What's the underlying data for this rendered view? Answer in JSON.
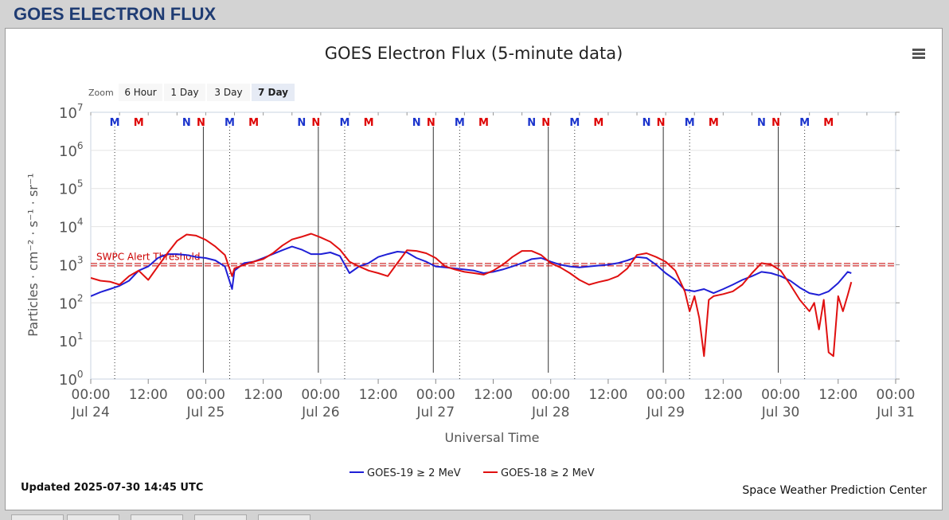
{
  "page": {
    "heading": "GOES ELECTRON FLUX"
  },
  "chart_data": {
    "type": "line",
    "title": "GOES Electron Flux (5-minute data)",
    "xlabel": "Universal Time",
    "ylabel": "Particles · cm⁻² · s⁻¹ · sr⁻¹",
    "y_scale": "log",
    "ylim": [
      1,
      10000000
    ],
    "xlim": [
      "2025-07-24 00:00",
      "2025-07-31 00:00"
    ],
    "y_ticks": [
      {
        "base": "10",
        "exp": "0"
      },
      {
        "base": "10",
        "exp": "1"
      },
      {
        "base": "10",
        "exp": "2"
      },
      {
        "base": "10",
        "exp": "3"
      },
      {
        "base": "10",
        "exp": "4"
      },
      {
        "base": "10",
        "exp": "5"
      },
      {
        "base": "10",
        "exp": "6"
      },
      {
        "base": "10",
        "exp": "7"
      }
    ],
    "x_ticks": [
      {
        "x": "2025-07-24 00:00",
        "time": "00:00",
        "date": "Jul 24"
      },
      {
        "x": "2025-07-24 12:00",
        "time": "12:00",
        "date": ""
      },
      {
        "x": "2025-07-25 00:00",
        "time": "00:00",
        "date": "Jul 25"
      },
      {
        "x": "2025-07-25 12:00",
        "time": "12:00",
        "date": ""
      },
      {
        "x": "2025-07-26 00:00",
        "time": "00:00",
        "date": "Jul 26"
      },
      {
        "x": "2025-07-26 12:00",
        "time": "12:00",
        "date": ""
      },
      {
        "x": "2025-07-27 00:00",
        "time": "00:00",
        "date": "Jul 27"
      },
      {
        "x": "2025-07-27 12:00",
        "time": "12:00",
        "date": ""
      },
      {
        "x": "2025-07-28 00:00",
        "time": "00:00",
        "date": "Jul 28"
      },
      {
        "x": "2025-07-28 12:00",
        "time": "12:00",
        "date": ""
      },
      {
        "x": "2025-07-29 00:00",
        "time": "00:00",
        "date": "Jul 29"
      },
      {
        "x": "2025-07-29 12:00",
        "time": "12:00",
        "date": ""
      },
      {
        "x": "2025-07-30 00:00",
        "time": "00:00",
        "date": "Jul 30"
      },
      {
        "x": "2025-07-30 12:00",
        "time": "12:00",
        "date": ""
      },
      {
        "x": "2025-07-31 00:00",
        "time": "00:00",
        "date": "Jul 31"
      }
    ],
    "threshold": {
      "label": "SWPC Alert Threshold",
      "value": 1000,
      "color": "#cc0000"
    },
    "markers": [
      {
        "x": "2025-07-24 05:00",
        "label": "M",
        "color": "#1a33cc",
        "line": "dotted"
      },
      {
        "x": "2025-07-24 10:00",
        "label": "M",
        "color": "#dd0000"
      },
      {
        "x": "2025-07-24 20:00",
        "label": "N",
        "color": "#1a33cc"
      },
      {
        "x": "2025-07-24 23:00",
        "label": "N",
        "color": "#dd0000",
        "line": "solid"
      },
      {
        "x": "2025-07-25 05:00",
        "label": "M",
        "color": "#1a33cc",
        "line": "dotted"
      },
      {
        "x": "2025-07-25 10:00",
        "label": "M",
        "color": "#dd0000"
      },
      {
        "x": "2025-07-25 20:00",
        "label": "N",
        "color": "#1a33cc"
      },
      {
        "x": "2025-07-25 23:00",
        "label": "N",
        "color": "#dd0000",
        "line": "solid"
      },
      {
        "x": "2025-07-26 05:00",
        "label": "M",
        "color": "#1a33cc",
        "line": "dotted"
      },
      {
        "x": "2025-07-26 10:00",
        "label": "M",
        "color": "#dd0000"
      },
      {
        "x": "2025-07-26 20:00",
        "label": "N",
        "color": "#1a33cc"
      },
      {
        "x": "2025-07-26 23:00",
        "label": "N",
        "color": "#dd0000",
        "line": "solid"
      },
      {
        "x": "2025-07-27 05:00",
        "label": "M",
        "color": "#1a33cc",
        "line": "dotted"
      },
      {
        "x": "2025-07-27 10:00",
        "label": "M",
        "color": "#dd0000"
      },
      {
        "x": "2025-07-27 20:00",
        "label": "N",
        "color": "#1a33cc"
      },
      {
        "x": "2025-07-27 23:00",
        "label": "N",
        "color": "#dd0000",
        "line": "solid"
      },
      {
        "x": "2025-07-28 05:00",
        "label": "M",
        "color": "#1a33cc",
        "line": "dotted"
      },
      {
        "x": "2025-07-28 10:00",
        "label": "M",
        "color": "#dd0000"
      },
      {
        "x": "2025-07-28 20:00",
        "label": "N",
        "color": "#1a33cc"
      },
      {
        "x": "2025-07-28 23:00",
        "label": "N",
        "color": "#dd0000",
        "line": "solid"
      },
      {
        "x": "2025-07-29 05:00",
        "label": "M",
        "color": "#1a33cc",
        "line": "dotted"
      },
      {
        "x": "2025-07-29 10:00",
        "label": "M",
        "color": "#dd0000"
      },
      {
        "x": "2025-07-29 20:00",
        "label": "N",
        "color": "#1a33cc"
      },
      {
        "x": "2025-07-29 23:00",
        "label": "N",
        "color": "#dd0000",
        "line": "solid"
      },
      {
        "x": "2025-07-30 05:00",
        "label": "M",
        "color": "#1a33cc",
        "line": "dotted"
      },
      {
        "x": "2025-07-30 10:00",
        "label": "M",
        "color": "#dd0000"
      }
    ],
    "series": [
      {
        "name": "GOES-19 ≥ 2 MeV",
        "color": "#1f1fd6",
        "points": [
          [
            "2025-07-24 00:00",
            150
          ],
          [
            "2025-07-24 02:00",
            190
          ],
          [
            "2025-07-24 04:00",
            230
          ],
          [
            "2025-07-24 06:00",
            280
          ],
          [
            "2025-07-24 08:00",
            380
          ],
          [
            "2025-07-24 10:00",
            700
          ],
          [
            "2025-07-24 12:00",
            900
          ],
          [
            "2025-07-24 14:00",
            1500
          ],
          [
            "2025-07-24 16:00",
            1900
          ],
          [
            "2025-07-24 18:00",
            1900
          ],
          [
            "2025-07-24 20:00",
            1800
          ],
          [
            "2025-07-24 22:00",
            1600
          ],
          [
            "2025-07-25 00:00",
            1500
          ],
          [
            "2025-07-25 02:00",
            1300
          ],
          [
            "2025-07-25 04:00",
            900
          ],
          [
            "2025-07-25 05:30",
            230
          ],
          [
            "2025-07-25 06:00",
            700
          ],
          [
            "2025-07-25 08:00",
            1100
          ],
          [
            "2025-07-25 10:00",
            1200
          ],
          [
            "2025-07-25 12:00",
            1500
          ],
          [
            "2025-07-25 14:00",
            1900
          ],
          [
            "2025-07-25 16:00",
            2400
          ],
          [
            "2025-07-25 18:00",
            3000
          ],
          [
            "2025-07-25 20:00",
            2500
          ],
          [
            "2025-07-25 22:00",
            1900
          ],
          [
            "2025-07-26 00:00",
            1900
          ],
          [
            "2025-07-26 02:00",
            2100
          ],
          [
            "2025-07-26 04:00",
            1700
          ],
          [
            "2025-07-26 06:00",
            600
          ],
          [
            "2025-07-26 08:00",
            900
          ],
          [
            "2025-07-26 10:00",
            1100
          ],
          [
            "2025-07-26 12:00",
            1600
          ],
          [
            "2025-07-26 14:00",
            1900
          ],
          [
            "2025-07-26 16:00",
            2200
          ],
          [
            "2025-07-26 18:00",
            2100
          ],
          [
            "2025-07-26 20:00",
            1500
          ],
          [
            "2025-07-26 22:00",
            1200
          ],
          [
            "2025-07-27 00:00",
            900
          ],
          [
            "2025-07-27 02:00",
            850
          ],
          [
            "2025-07-27 04:00",
            800
          ],
          [
            "2025-07-27 06:00",
            750
          ],
          [
            "2025-07-27 08:00",
            700
          ],
          [
            "2025-07-27 10:00",
            600
          ],
          [
            "2025-07-27 12:00",
            650
          ],
          [
            "2025-07-27 14:00",
            750
          ],
          [
            "2025-07-27 16:00",
            900
          ],
          [
            "2025-07-27 18:00",
            1100
          ],
          [
            "2025-07-27 20:00",
            1400
          ],
          [
            "2025-07-27 22:00",
            1500
          ],
          [
            "2025-07-28 00:00",
            1200
          ],
          [
            "2025-07-28 02:00",
            1000
          ],
          [
            "2025-07-28 04:00",
            900
          ],
          [
            "2025-07-28 06:00",
            850
          ],
          [
            "2025-07-28 08:00",
            900
          ],
          [
            "2025-07-28 10:00",
            950
          ],
          [
            "2025-07-28 12:00",
            1000
          ],
          [
            "2025-07-28 14:00",
            1100
          ],
          [
            "2025-07-28 16:00",
            1300
          ],
          [
            "2025-07-28 18:00",
            1600
          ],
          [
            "2025-07-28 20:00",
            1500
          ],
          [
            "2025-07-28 22:00",
            1000
          ],
          [
            "2025-07-29 00:00",
            600
          ],
          [
            "2025-07-29 02:00",
            400
          ],
          [
            "2025-07-29 04:00",
            220
          ],
          [
            "2025-07-29 06:00",
            200
          ],
          [
            "2025-07-29 08:00",
            230
          ],
          [
            "2025-07-29 10:00",
            180
          ],
          [
            "2025-07-29 12:00",
            230
          ],
          [
            "2025-07-29 14:00",
            300
          ],
          [
            "2025-07-29 16:00",
            400
          ],
          [
            "2025-07-29 18:00",
            500
          ],
          [
            "2025-07-29 20:00",
            650
          ],
          [
            "2025-07-29 22:00",
            600
          ],
          [
            "2025-07-30 00:00",
            500
          ],
          [
            "2025-07-30 02:00",
            380
          ],
          [
            "2025-07-30 04:00",
            250
          ],
          [
            "2025-07-30 06:00",
            180
          ],
          [
            "2025-07-30 08:00",
            160
          ],
          [
            "2025-07-30 10:00",
            200
          ],
          [
            "2025-07-30 12:00",
            330
          ],
          [
            "2025-07-30 14:00",
            650
          ],
          [
            "2025-07-30 14:45",
            600
          ]
        ]
      },
      {
        "name": "GOES-18 ≥ 2 MeV",
        "color": "#e01010",
        "points": [
          [
            "2025-07-24 00:00",
            450
          ],
          [
            "2025-07-24 02:00",
            380
          ],
          [
            "2025-07-24 04:00",
            360
          ],
          [
            "2025-07-24 06:00",
            300
          ],
          [
            "2025-07-24 08:00",
            500
          ],
          [
            "2025-07-24 10:00",
            700
          ],
          [
            "2025-07-24 12:00",
            400
          ],
          [
            "2025-07-24 14:00",
            900
          ],
          [
            "2025-07-24 16:00",
            2000
          ],
          [
            "2025-07-24 18:00",
            4200
          ],
          [
            "2025-07-24 20:00",
            6200
          ],
          [
            "2025-07-24 22:00",
            5800
          ],
          [
            "2025-07-25 00:00",
            4500
          ],
          [
            "2025-07-25 02:00",
            3000
          ],
          [
            "2025-07-25 04:00",
            1800
          ],
          [
            "2025-07-25 05:30",
            500
          ],
          [
            "2025-07-25 06:00",
            800
          ],
          [
            "2025-07-25 08:00",
            1000
          ],
          [
            "2025-07-25 10:00",
            1200
          ],
          [
            "2025-07-25 12:00",
            1400
          ],
          [
            "2025-07-25 14:00",
            2000
          ],
          [
            "2025-07-25 16:00",
            3200
          ],
          [
            "2025-07-25 18:00",
            4600
          ],
          [
            "2025-07-25 20:00",
            5400
          ],
          [
            "2025-07-25 22:00",
            6500
          ],
          [
            "2025-07-26 00:00",
            5200
          ],
          [
            "2025-07-26 02:00",
            4000
          ],
          [
            "2025-07-26 04:00",
            2500
          ],
          [
            "2025-07-26 06:00",
            1200
          ],
          [
            "2025-07-26 08:00",
            900
          ],
          [
            "2025-07-26 10:00",
            700
          ],
          [
            "2025-07-26 12:00",
            600
          ],
          [
            "2025-07-26 14:00",
            500
          ],
          [
            "2025-07-26 16:00",
            1100
          ],
          [
            "2025-07-26 18:00",
            2400
          ],
          [
            "2025-07-26 20:00",
            2300
          ],
          [
            "2025-07-26 22:00",
            2000
          ],
          [
            "2025-07-27 00:00",
            1500
          ],
          [
            "2025-07-27 02:00",
            900
          ],
          [
            "2025-07-27 04:00",
            750
          ],
          [
            "2025-07-27 06:00",
            650
          ],
          [
            "2025-07-27 08:00",
            600
          ],
          [
            "2025-07-27 10:00",
            550
          ],
          [
            "2025-07-27 12:00",
            700
          ],
          [
            "2025-07-27 14:00",
            1000
          ],
          [
            "2025-07-27 16:00",
            1600
          ],
          [
            "2025-07-27 18:00",
            2300
          ],
          [
            "2025-07-27 20:00",
            2300
          ],
          [
            "2025-07-27 22:00",
            1800
          ],
          [
            "2025-07-28 00:00",
            1100
          ],
          [
            "2025-07-28 02:00",
            850
          ],
          [
            "2025-07-28 04:00",
            600
          ],
          [
            "2025-07-28 06:00",
            400
          ],
          [
            "2025-07-28 08:00",
            300
          ],
          [
            "2025-07-28 10:00",
            350
          ],
          [
            "2025-07-28 12:00",
            400
          ],
          [
            "2025-07-28 14:00",
            500
          ],
          [
            "2025-07-28 16:00",
            800
          ],
          [
            "2025-07-28 18:00",
            1800
          ],
          [
            "2025-07-28 20:00",
            2000
          ],
          [
            "2025-07-28 22:00",
            1600
          ],
          [
            "2025-07-29 00:00",
            1200
          ],
          [
            "2025-07-29 02:00",
            700
          ],
          [
            "2025-07-29 04:00",
            200
          ],
          [
            "2025-07-29 05:00",
            60
          ],
          [
            "2025-07-29 06:00",
            150
          ],
          [
            "2025-07-29 07:00",
            40
          ],
          [
            "2025-07-29 08:00",
            4
          ],
          [
            "2025-07-29 09:00",
            120
          ],
          [
            "2025-07-29 10:00",
            150
          ],
          [
            "2025-07-29 12:00",
            170
          ],
          [
            "2025-07-29 14:00",
            200
          ],
          [
            "2025-07-29 16:00",
            300
          ],
          [
            "2025-07-29 18:00",
            600
          ],
          [
            "2025-07-29 20:00",
            1100
          ],
          [
            "2025-07-29 22:00",
            1000
          ],
          [
            "2025-07-30 00:00",
            700
          ],
          [
            "2025-07-30 02:00",
            300
          ],
          [
            "2025-07-30 04:00",
            120
          ],
          [
            "2025-07-30 06:00",
            60
          ],
          [
            "2025-07-30 07:00",
            100
          ],
          [
            "2025-07-30 08:00",
            20
          ],
          [
            "2025-07-30 09:00",
            120
          ],
          [
            "2025-07-30 10:00",
            5
          ],
          [
            "2025-07-30 11:00",
            4
          ],
          [
            "2025-07-30 12:00",
            150
          ],
          [
            "2025-07-30 13:00",
            60
          ],
          [
            "2025-07-30 14:00",
            160
          ],
          [
            "2025-07-30 14:45",
            350
          ]
        ]
      }
    ],
    "legend_position": "bottom-center",
    "grid": true
  },
  "zoom": {
    "label": "Zoom",
    "buttons": [
      {
        "label": "6 Hour",
        "active": false
      },
      {
        "label": "1 Day",
        "active": false
      },
      {
        "label": "3 Day",
        "active": false
      },
      {
        "label": "7 Day",
        "active": true
      }
    ]
  },
  "footer": {
    "updated": "Updated 2025-07-30 14:45 UTC",
    "credit": "Space Weather Prediction Center"
  },
  "menu_icon": "hamburger-menu-icon"
}
